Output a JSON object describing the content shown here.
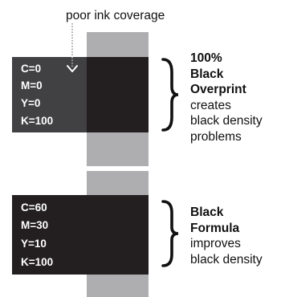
{
  "top_panel": {
    "label": "poor ink coverage",
    "cmyk": [
      "C=0",
      "M=0",
      "Y=0",
      "K=100"
    ],
    "heading": [
      "100%",
      "Black",
      "Overprint"
    ],
    "body": [
      "creates",
      "black density",
      "problems"
    ]
  },
  "bottom_panel": {
    "cmyk": [
      "C=60",
      "M=30",
      "Y=10",
      "K=100"
    ],
    "heading": [
      "Black",
      "Formula"
    ],
    "body": [
      "improves",
      "black density"
    ]
  },
  "colors": {
    "gray_strip": "#aeadb0",
    "black_swatch": "#231f20",
    "light_black_swatch": "#414042",
    "text": "#111111"
  }
}
